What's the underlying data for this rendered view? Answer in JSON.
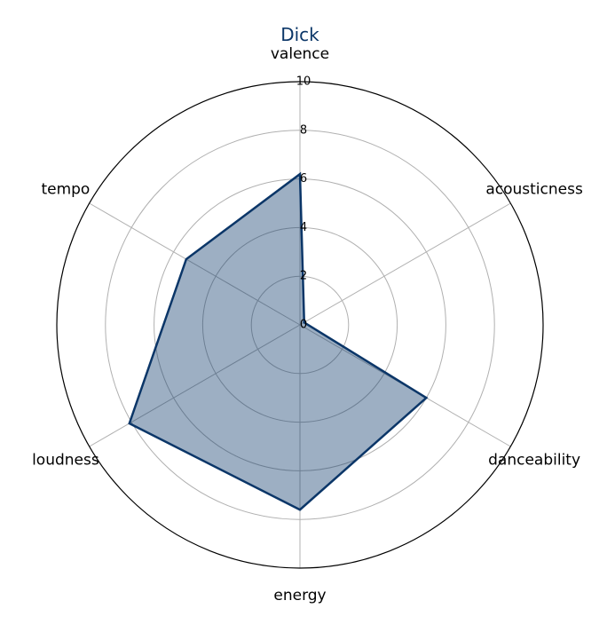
{
  "chart_data": {
    "type": "radar",
    "title": "Dick",
    "axes": [
      "valence",
      "acousticness",
      "danceability",
      "energy",
      "loudness",
      "tempo"
    ],
    "series": [
      {
        "values": [
          6.2,
          0.2,
          6.0,
          7.6,
          8.1,
          5.4
        ]
      }
    ],
    "rlim": [
      0,
      10
    ],
    "r_ticks": [
      "0",
      "2",
      "4",
      "6",
      "8",
      "10"
    ],
    "grid": true,
    "colors": {
      "title": "#0b3668",
      "line": "#0b3668",
      "fill": "#0b3668",
      "grid": "#b0b0b0",
      "outer_ring": "#000000"
    }
  }
}
